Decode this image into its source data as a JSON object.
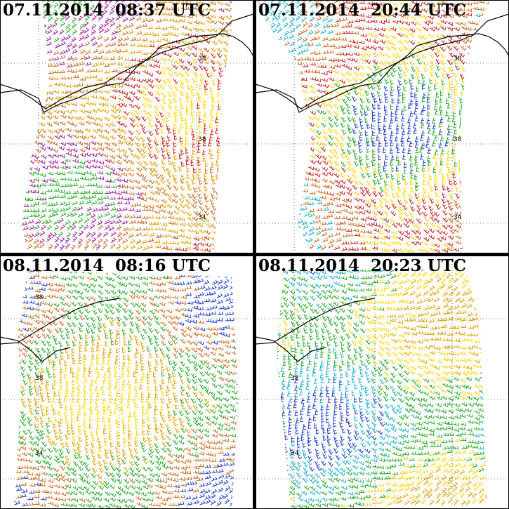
{
  "panels": [
    {
      "title": "07.11.2014  08:37 UTC",
      "lat_labels": [
        "38",
        "38",
        "34"
      ],
      "dominant": [
        "#ffd400",
        "#c81e1e",
        "#e0a000",
        "#cc6a1a",
        "#9b1a9b",
        "#22aa22"
      ]
    },
    {
      "title": "07.11.2014  20:44 UTC",
      "lat_labels": [
        "38",
        "38",
        "34"
      ],
      "dominant": [
        "#1a3ac8",
        "#22aa22",
        "#ffd400",
        "#c81e1e",
        "#cc6a1a",
        "#1ab0d0"
      ]
    },
    {
      "title": "08.11.2014  08:16 UTC",
      "lat_labels": [
        "38",
        "38",
        "34"
      ],
      "dominant": [
        "#ffd400",
        "#e0a000",
        "#22aa22",
        "#cc6a1a",
        "#1a3ac8"
      ]
    },
    {
      "title": "08.11.2014  20:23 UTC",
      "lat_labels": [
        "38",
        "34"
      ],
      "dominant": [
        "#1a3ac8",
        "#1ab0d0",
        "#22aa22",
        "#ffd400",
        "#e0a000"
      ]
    }
  ],
  "colors": {
    "frame": "#000000",
    "grid": "#000000",
    "coast": "#000000"
  }
}
